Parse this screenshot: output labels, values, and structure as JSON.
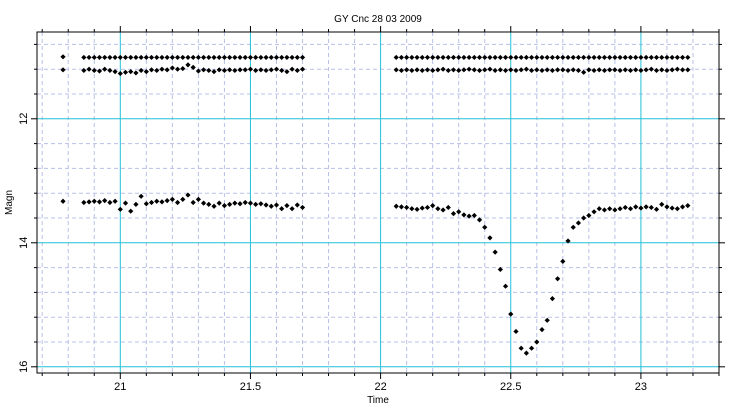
{
  "chart_data": {
    "type": "scatter",
    "title": "GY Cnc 28 03 2009",
    "xlabel": "Time",
    "ylabel": "Magn",
    "xlim": [
      20.68,
      23.3
    ],
    "ylim": [
      10.6,
      16.1
    ],
    "y_inverted": true,
    "x_ticks": [
      "21",
      "21.5",
      "22",
      "22.5",
      "23"
    ],
    "x_tick_values": [
      21,
      21.5,
      22,
      22.5,
      23
    ],
    "y_ticks": [
      "12",
      "14",
      "16"
    ],
    "y_tick_values": [
      12,
      14,
      16
    ],
    "grid": true,
    "colors": {
      "major_grid": "#22c0d8",
      "minor_grid": "#b8c0e8",
      "marker": "#000000",
      "frame": "#000000"
    },
    "marker": "diamond",
    "series": [
      {
        "values": [
          [
            20.78,
            11.0
          ],
          [
            20.86,
            11.01
          ],
          [
            20.88,
            11.01
          ],
          [
            20.9,
            11.01
          ],
          [
            20.92,
            11.01
          ],
          [
            20.94,
            11.01
          ],
          [
            20.96,
            11.01
          ],
          [
            20.98,
            11.01
          ],
          [
            21.0,
            11.01
          ],
          [
            21.02,
            11.01
          ],
          [
            21.04,
            11.01
          ],
          [
            21.06,
            11.01
          ],
          [
            21.08,
            11.01
          ],
          [
            21.1,
            11.01
          ],
          [
            21.12,
            11.01
          ],
          [
            21.14,
            11.01
          ],
          [
            21.16,
            11.01
          ],
          [
            21.18,
            11.01
          ],
          [
            21.2,
            11.01
          ],
          [
            21.22,
            11.01
          ],
          [
            21.24,
            11.01
          ],
          [
            21.26,
            11.01
          ],
          [
            21.28,
            11.01
          ],
          [
            21.3,
            11.01
          ],
          [
            21.32,
            11.01
          ],
          [
            21.34,
            11.01
          ],
          [
            21.36,
            11.01
          ],
          [
            21.38,
            11.01
          ],
          [
            21.4,
            11.01
          ],
          [
            21.42,
            11.01
          ],
          [
            21.44,
            11.01
          ],
          [
            21.46,
            11.01
          ],
          [
            21.48,
            11.01
          ],
          [
            21.5,
            11.01
          ],
          [
            21.52,
            11.01
          ],
          [
            21.54,
            11.01
          ],
          [
            21.56,
            11.01
          ],
          [
            21.58,
            11.01
          ],
          [
            21.6,
            11.01
          ],
          [
            21.62,
            11.01
          ],
          [
            21.64,
            11.01
          ],
          [
            21.66,
            11.01
          ],
          [
            21.68,
            11.01
          ],
          [
            21.7,
            11.01
          ],
          [
            22.06,
            11.01
          ],
          [
            22.08,
            11.01
          ],
          [
            22.1,
            11.01
          ],
          [
            22.12,
            11.01
          ],
          [
            22.14,
            11.01
          ],
          [
            22.16,
            11.01
          ],
          [
            22.18,
            11.01
          ],
          [
            22.2,
            11.01
          ],
          [
            22.22,
            11.01
          ],
          [
            22.24,
            11.01
          ],
          [
            22.26,
            11.01
          ],
          [
            22.28,
            11.01
          ],
          [
            22.3,
            11.01
          ],
          [
            22.32,
            11.01
          ],
          [
            22.34,
            11.01
          ],
          [
            22.36,
            11.01
          ],
          [
            22.38,
            11.01
          ],
          [
            22.4,
            11.01
          ],
          [
            22.42,
            11.01
          ],
          [
            22.44,
            11.01
          ],
          [
            22.46,
            11.01
          ],
          [
            22.48,
            11.01
          ],
          [
            22.5,
            11.01
          ],
          [
            22.52,
            11.01
          ],
          [
            22.54,
            11.01
          ],
          [
            22.56,
            11.01
          ],
          [
            22.58,
            11.01
          ],
          [
            22.6,
            11.01
          ],
          [
            22.62,
            11.01
          ],
          [
            22.64,
            11.01
          ],
          [
            22.66,
            11.01
          ],
          [
            22.68,
            11.01
          ],
          [
            22.7,
            11.01
          ],
          [
            22.72,
            11.01
          ],
          [
            22.74,
            11.01
          ],
          [
            22.76,
            11.01
          ],
          [
            22.78,
            11.01
          ],
          [
            22.8,
            11.01
          ],
          [
            22.82,
            11.01
          ],
          [
            22.84,
            11.01
          ],
          [
            22.86,
            11.01
          ],
          [
            22.88,
            11.01
          ],
          [
            22.9,
            11.01
          ],
          [
            22.92,
            11.01
          ],
          [
            22.94,
            11.01
          ],
          [
            22.96,
            11.01
          ],
          [
            22.98,
            11.01
          ],
          [
            23.0,
            11.01
          ],
          [
            23.02,
            11.01
          ],
          [
            23.04,
            11.01
          ],
          [
            23.06,
            11.01
          ],
          [
            23.08,
            11.01
          ],
          [
            23.1,
            11.01
          ],
          [
            23.12,
            11.01
          ],
          [
            23.14,
            11.01
          ],
          [
            23.16,
            11.01
          ],
          [
            23.18,
            11.01
          ]
        ]
      },
      {
        "values": [
          [
            20.78,
            11.21
          ],
          [
            20.86,
            11.22
          ],
          [
            20.88,
            11.2
          ],
          [
            20.9,
            11.22
          ],
          [
            20.92,
            11.23
          ],
          [
            20.94,
            11.2
          ],
          [
            20.96,
            11.22
          ],
          [
            20.98,
            11.24
          ],
          [
            21.0,
            11.27
          ],
          [
            21.02,
            11.25
          ],
          [
            21.04,
            11.24
          ],
          [
            21.06,
            11.26
          ],
          [
            21.08,
            11.22
          ],
          [
            21.1,
            11.24
          ],
          [
            21.12,
            11.21
          ],
          [
            21.14,
            11.22
          ],
          [
            21.16,
            11.2
          ],
          [
            21.18,
            11.21
          ],
          [
            21.2,
            11.18
          ],
          [
            21.22,
            11.2
          ],
          [
            21.24,
            11.19
          ],
          [
            21.26,
            11.13
          ],
          [
            21.28,
            11.17
          ],
          [
            21.3,
            11.23
          ],
          [
            21.32,
            11.21
          ],
          [
            21.34,
            11.22
          ],
          [
            21.36,
            11.24
          ],
          [
            21.38,
            11.21
          ],
          [
            21.4,
            11.22
          ],
          [
            21.42,
            11.21
          ],
          [
            21.44,
            11.22
          ],
          [
            21.46,
            11.21
          ],
          [
            21.48,
            11.21
          ],
          [
            21.5,
            11.2
          ],
          [
            21.52,
            11.22
          ],
          [
            21.54,
            11.21
          ],
          [
            21.56,
            11.22
          ],
          [
            21.58,
            11.21
          ],
          [
            21.6,
            11.2
          ],
          [
            21.62,
            11.22
          ],
          [
            21.64,
            11.24
          ],
          [
            21.66,
            11.2
          ],
          [
            21.68,
            11.22
          ],
          [
            21.7,
            11.2
          ],
          [
            22.06,
            11.21
          ],
          [
            22.08,
            11.22
          ],
          [
            22.1,
            11.21
          ],
          [
            22.12,
            11.22
          ],
          [
            22.14,
            11.21
          ],
          [
            22.16,
            11.22
          ],
          [
            22.18,
            11.21
          ],
          [
            22.2,
            11.22
          ],
          [
            22.22,
            11.21
          ],
          [
            22.24,
            11.2
          ],
          [
            22.26,
            11.22
          ],
          [
            22.28,
            11.21
          ],
          [
            22.3,
            11.22
          ],
          [
            22.32,
            11.21
          ],
          [
            22.34,
            11.2
          ],
          [
            22.36,
            11.21
          ],
          [
            22.38,
            11.22
          ],
          [
            22.4,
            11.21
          ],
          [
            22.42,
            11.2
          ],
          [
            22.44,
            11.22
          ],
          [
            22.46,
            11.21
          ],
          [
            22.48,
            11.22
          ],
          [
            22.5,
            11.21
          ],
          [
            22.52,
            11.22
          ],
          [
            22.54,
            11.21
          ],
          [
            22.56,
            11.2
          ],
          [
            22.58,
            11.22
          ],
          [
            22.6,
            11.21
          ],
          [
            22.62,
            11.22
          ],
          [
            22.64,
            11.21
          ],
          [
            22.66,
            11.22
          ],
          [
            22.68,
            11.21
          ],
          [
            22.7,
            11.21
          ],
          [
            22.72,
            11.22
          ],
          [
            22.74,
            11.21
          ],
          [
            22.76,
            11.22
          ],
          [
            22.78,
            11.25
          ],
          [
            22.8,
            11.21
          ],
          [
            22.82,
            11.22
          ],
          [
            22.84,
            11.21
          ],
          [
            22.86,
            11.22
          ],
          [
            22.88,
            11.21
          ],
          [
            22.9,
            11.21
          ],
          [
            22.92,
            11.22
          ],
          [
            22.94,
            11.21
          ],
          [
            22.96,
            11.22
          ],
          [
            22.98,
            11.21
          ],
          [
            23.0,
            11.22
          ],
          [
            23.02,
            11.21
          ],
          [
            23.04,
            11.2
          ],
          [
            23.06,
            11.22
          ],
          [
            23.08,
            11.21
          ],
          [
            23.1,
            11.22
          ],
          [
            23.12,
            11.21
          ],
          [
            23.14,
            11.2
          ],
          [
            23.16,
            11.21
          ],
          [
            23.18,
            11.21
          ]
        ]
      },
      {
        "values": [
          [
            20.78,
            13.33
          ],
          [
            20.86,
            13.35
          ],
          [
            20.88,
            13.34
          ],
          [
            20.9,
            13.33
          ],
          [
            20.92,
            13.34
          ],
          [
            20.94,
            13.32
          ],
          [
            20.96,
            13.35
          ],
          [
            20.98,
            13.33
          ],
          [
            21.0,
            13.46
          ],
          [
            21.02,
            13.36
          ],
          [
            21.04,
            13.49
          ],
          [
            21.06,
            13.38
          ],
          [
            21.08,
            13.25
          ],
          [
            21.1,
            13.37
          ],
          [
            21.12,
            13.35
          ],
          [
            21.14,
            13.33
          ],
          [
            21.16,
            13.34
          ],
          [
            21.18,
            13.32
          ],
          [
            21.2,
            13.3
          ],
          [
            21.22,
            13.35
          ],
          [
            21.24,
            13.3
          ],
          [
            21.26,
            13.23
          ],
          [
            21.28,
            13.35
          ],
          [
            21.3,
            13.3
          ],
          [
            21.32,
            13.36
          ],
          [
            21.34,
            13.38
          ],
          [
            21.36,
            13.41
          ],
          [
            21.38,
            13.36
          ],
          [
            21.4,
            13.4
          ],
          [
            21.42,
            13.38
          ],
          [
            21.44,
            13.36
          ],
          [
            21.46,
            13.37
          ],
          [
            21.48,
            13.35
          ],
          [
            21.5,
            13.36
          ],
          [
            21.52,
            13.38
          ],
          [
            21.54,
            13.37
          ],
          [
            21.56,
            13.39
          ],
          [
            21.58,
            13.41
          ],
          [
            21.6,
            13.39
          ],
          [
            21.62,
            13.45
          ],
          [
            21.64,
            13.4
          ],
          [
            21.66,
            13.45
          ],
          [
            21.68,
            13.39
          ],
          [
            21.7,
            13.43
          ],
          [
            22.06,
            13.41
          ],
          [
            22.08,
            13.42
          ],
          [
            22.1,
            13.43
          ],
          [
            22.12,
            13.45
          ],
          [
            22.14,
            13.46
          ],
          [
            22.16,
            13.44
          ],
          [
            22.18,
            13.43
          ],
          [
            22.2,
            13.4
          ],
          [
            22.22,
            13.45
          ],
          [
            22.24,
            13.47
          ],
          [
            22.26,
            13.43
          ],
          [
            22.28,
            13.53
          ],
          [
            22.3,
            13.5
          ],
          [
            22.32,
            13.55
          ],
          [
            22.34,
            13.57
          ],
          [
            22.36,
            13.56
          ],
          [
            22.38,
            13.63
          ],
          [
            22.4,
            13.75
          ],
          [
            22.42,
            13.92
          ],
          [
            22.44,
            14.15
          ],
          [
            22.46,
            14.43
          ],
          [
            22.48,
            14.7
          ],
          [
            22.5,
            15.15
          ],
          [
            22.52,
            15.43
          ],
          [
            22.54,
            15.7
          ],
          [
            22.56,
            15.78
          ],
          [
            22.58,
            15.7
          ],
          [
            22.6,
            15.6
          ],
          [
            22.62,
            15.4
          ],
          [
            22.64,
            15.25
          ],
          [
            22.66,
            14.9
          ],
          [
            22.68,
            14.58
          ],
          [
            22.7,
            14.3
          ],
          [
            22.72,
            13.97
          ],
          [
            22.74,
            13.75
          ],
          [
            22.76,
            13.68
          ],
          [
            22.78,
            13.6
          ],
          [
            22.8,
            13.56
          ],
          [
            22.82,
            13.5
          ],
          [
            22.84,
            13.45
          ],
          [
            22.86,
            13.47
          ],
          [
            22.88,
            13.45
          ],
          [
            22.9,
            13.47
          ],
          [
            22.92,
            13.45
          ],
          [
            22.94,
            13.43
          ],
          [
            22.96,
            13.45
          ],
          [
            22.98,
            13.42
          ],
          [
            23.0,
            13.44
          ],
          [
            23.02,
            13.42
          ],
          [
            23.04,
            13.43
          ],
          [
            23.06,
            13.46
          ],
          [
            23.08,
            13.38
          ],
          [
            23.1,
            13.42
          ],
          [
            23.12,
            13.44
          ],
          [
            23.14,
            13.45
          ],
          [
            23.16,
            13.42
          ],
          [
            23.18,
            13.4
          ]
        ]
      }
    ]
  }
}
